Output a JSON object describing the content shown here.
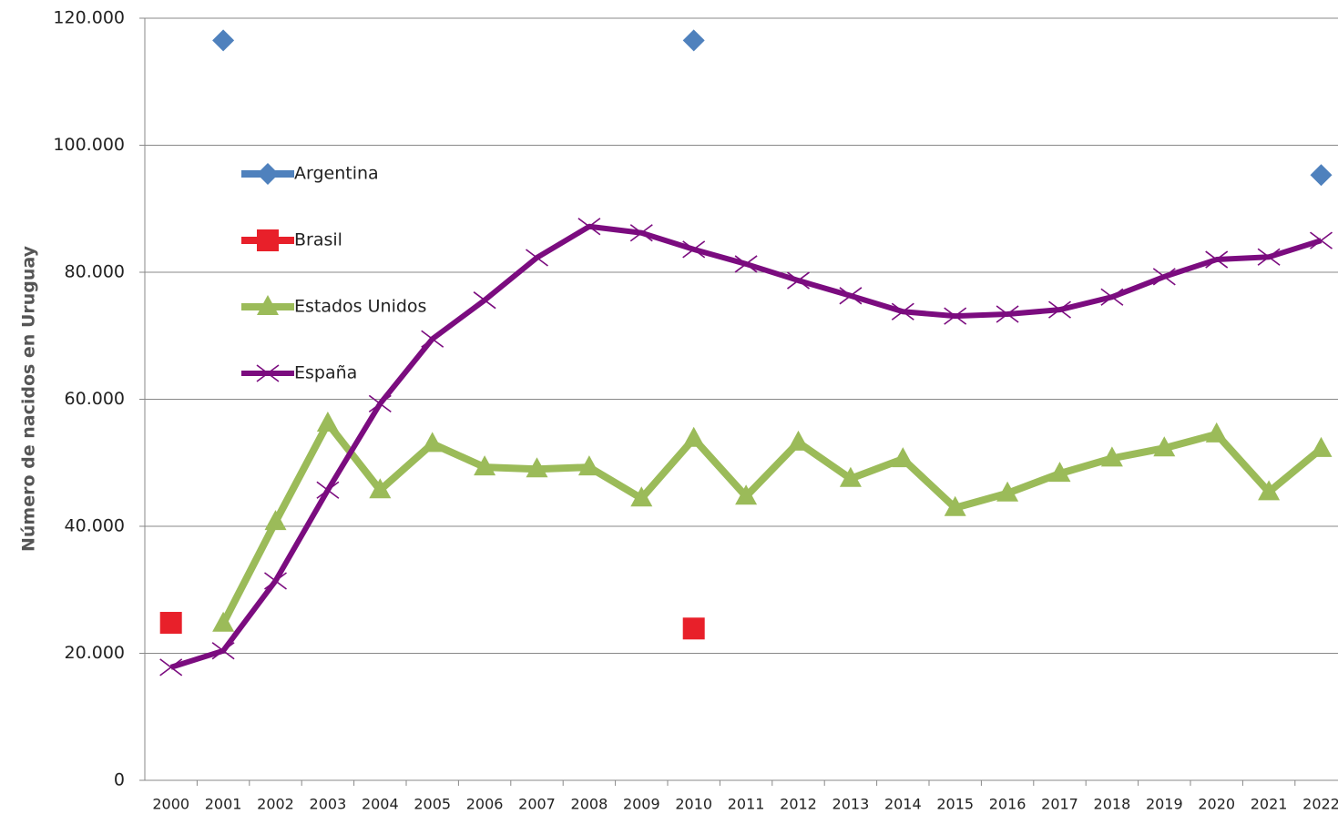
{
  "chart_data": {
    "type": "line",
    "y_label": "Número de nacidos en Uruguay",
    "categories": [
      "2000",
      "2001",
      "2002",
      "2003",
      "2004",
      "2005",
      "2006",
      "2007",
      "2008",
      "2009",
      "2010",
      "2011",
      "2012",
      "2013",
      "2014",
      "2015",
      "2016",
      "2017",
      "2018",
      "2019",
      "2020",
      "2021",
      "2022"
    ],
    "series": [
      {
        "name": "Argentina",
        "color": "#4f81bd",
        "marker": "diamond",
        "values": [
          null,
          116500,
          null,
          null,
          null,
          null,
          null,
          null,
          null,
          null,
          116500,
          null,
          null,
          null,
          null,
          null,
          null,
          null,
          null,
          null,
          null,
          null,
          95300
        ]
      },
      {
        "name": "Brasil",
        "color": "#e8202a",
        "marker": "square",
        "values": [
          24800,
          null,
          null,
          null,
          null,
          null,
          null,
          null,
          null,
          null,
          23900,
          null,
          null,
          null,
          null,
          null,
          null,
          null,
          null,
          null,
          null,
          null,
          null
        ]
      },
      {
        "name": "Estados Unidos",
        "color": "#9bbb59",
        "marker": "triangle",
        "values": [
          null,
          24700,
          40700,
          56200,
          45700,
          53000,
          49300,
          49000,
          49300,
          44400,
          53800,
          44700,
          53200,
          47500,
          50600,
          42900,
          45200,
          48300,
          50700,
          52300,
          54500,
          45400,
          52200
        ]
      },
      {
        "name": "España",
        "color": "#7b0c7f",
        "marker": "x",
        "values": [
          17800,
          20400,
          31400,
          45700,
          59300,
          69500,
          75600,
          82300,
          87200,
          86200,
          83600,
          81300,
          78700,
          76300,
          73800,
          73100,
          73400,
          74100,
          76100,
          79300,
          82000,
          82400,
          85000
        ]
      }
    ],
    "ylim": [
      0,
      120000
    ],
    "yticks": [
      0,
      {
        "value": 20000,
        "label": "20.000"
      },
      {
        "value": 40000,
        "label": "40.000"
      },
      {
        "value": 60000,
        "label": "60.000"
      },
      {
        "value": 80000,
        "label": "80.000"
      },
      {
        "value": 100000,
        "label": "100.000"
      },
      {
        "value": 120000,
        "label": "120.000"
      }
    ],
    "grid": true
  }
}
